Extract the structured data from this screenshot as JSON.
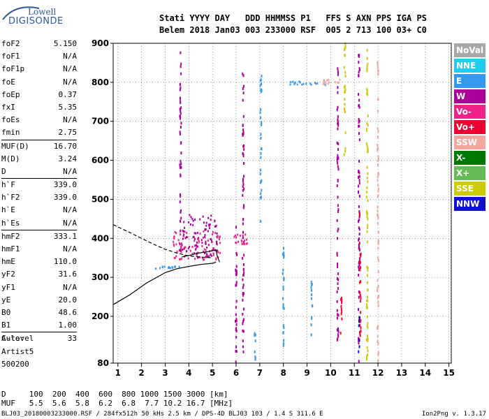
{
  "logo": {
    "line1": "Lowell",
    "line2": "DIGISONDE"
  },
  "header": {
    "line1": "Stati YYYY DAY   DDD HHMMSS P1   FFS S AXN PPS IGA PS",
    "line2": "Belem 2018 Jan03 003 233000 RSF  005 2 713 100 03+ C0"
  },
  "params": [
    {
      "k": "foF2",
      "v": "5.150"
    },
    {
      "k": "foF1",
      "v": "N/A"
    },
    {
      "k": "foF1p",
      "v": "N/A"
    },
    {
      "k": "foE",
      "v": "N/A"
    },
    {
      "k": "foEp",
      "v": "0.37"
    },
    {
      "k": "fxI",
      "v": "5.35"
    },
    {
      "k": "foEs",
      "v": "N/A"
    },
    {
      "k": "fmin",
      "v": "2.75"
    },
    {
      "k": "MUF(D)",
      "v": "16.70"
    },
    {
      "k": "M(D)",
      "v": "3.24"
    },
    {
      "k": "D",
      "v": "N/A"
    },
    {
      "k": "h`F",
      "v": "339.0"
    },
    {
      "k": "h`F2",
      "v": "339.0"
    },
    {
      "k": "h`E",
      "v": "N/A"
    },
    {
      "k": "h`Es",
      "v": "N/A"
    },
    {
      "k": "hmF2",
      "v": "333.1"
    },
    {
      "k": "hmF1",
      "v": "N/A"
    },
    {
      "k": "hmE",
      "v": "110.0"
    },
    {
      "k": "yF2",
      "v": "31.6"
    },
    {
      "k": "yF1",
      "v": "N/A"
    },
    {
      "k": "yE",
      "v": "20.0"
    },
    {
      "k": "B0",
      "v": "48.6"
    },
    {
      "k": "B1",
      "v": "1.00"
    },
    {
      "k": "C-level",
      "v": "33"
    }
  ],
  "auto": {
    "line1": "Auto:",
    "line2": "Artist5",
    "line3": "500200"
  },
  "legend": [
    {
      "label": "NoVal",
      "color": "#a8a8a8"
    },
    {
      "label": "NNE",
      "color": "#22ccee"
    },
    {
      "label": "E",
      "color": "#3399ee"
    },
    {
      "label": "W",
      "color": "#aa0099"
    },
    {
      "label": "Vo-",
      "color": "#ee2288"
    },
    {
      "label": "Vo+",
      "color": "#ee0033"
    },
    {
      "label": "SSW",
      "color": "#f2a6a0"
    },
    {
      "label": "X-",
      "color": "#007700"
    },
    {
      "label": "X+",
      "color": "#66bb55"
    },
    {
      "label": "SSE",
      "color": "#cccc00"
    },
    {
      "label": "NNW",
      "color": "#1111cc"
    }
  ],
  "muf_table": {
    "line1": "D     100  200  400  600  800 1000 1500 3000 [km]",
    "line2": "MUF   5.5  5.6  5.8  6.2  6.8  7.7 10.2 16.7 [MHz]"
  },
  "footer": {
    "left": "BLJ03_20180003233000.RSF / 284fx512h 50 kHs 2.5 km / DPS-4D BLJ03 103 / 1.4 S 311.6 E",
    "right": "Ion2Png v. 1.3.17"
  },
  "chart_data": {
    "type": "scatter",
    "title": "",
    "xlabel": "",
    "ylabel": "",
    "xlim": [
      0.8,
      15.1
    ],
    "ylim": [
      80,
      900
    ],
    "x_ticks": [
      1,
      2,
      3,
      4,
      5,
      6,
      7,
      8,
      9,
      10,
      11,
      12,
      13,
      14,
      15
    ],
    "y_ticks": [
      80,
      200,
      300,
      400,
      500,
      600,
      700,
      800,
      900
    ],
    "grid": true,
    "grid_style": "dotted",
    "traces": [
      {
        "color": "#000000",
        "style": "solid",
        "x": [
          0.8,
          1.5,
          2.2,
          3.0,
          3.5,
          4.0,
          4.5,
          5.0,
          5.15
        ],
        "y": [
          230,
          255,
          285,
          312,
          322,
          328,
          333,
          336,
          339
        ]
      },
      {
        "color": "#000000",
        "style": "dashed",
        "x": [
          0.8,
          1.5,
          2.0,
          2.5,
          3.0,
          3.5,
          4.0,
          4.5,
          5.0
        ],
        "y": [
          435,
          415,
          400,
          385,
          372,
          362,
          355,
          352,
          350
        ]
      },
      {
        "color": "#000000",
        "style": "solid",
        "x": [
          3.7,
          4.0,
          4.4,
          4.8,
          5.15,
          5.2,
          5.3
        ],
        "y": [
          352,
          356,
          362,
          366,
          370,
          355,
          339
        ]
      }
    ],
    "echo_tracks": [
      {
        "name": "W",
        "color": "#aa0099",
        "x": 3.65,
        "y0": 360,
        "y1": 890
      },
      {
        "name": "W",
        "color": "#aa0099",
        "x": 6.0,
        "y0": 80,
        "y1": 430
      },
      {
        "name": "W",
        "color": "#aa0099",
        "x": 6.3,
        "y0": 90,
        "y1": 840
      },
      {
        "name": "W",
        "color": "#aa0099",
        "x": 10.3,
        "y0": 130,
        "y1": 840
      },
      {
        "name": "W",
        "color": "#aa0099",
        "x": 11.2,
        "y0": 80,
        "y1": 900
      },
      {
        "name": "E",
        "color": "#3399ee",
        "x": 6.8,
        "y0": 80,
        "y1": 170
      },
      {
        "name": "E",
        "color": "#3399ee",
        "x": 7.05,
        "y0": 440,
        "y1": 820
      },
      {
        "name": "E",
        "color": "#3399ee",
        "x": 8.0,
        "y0": 100,
        "y1": 380
      },
      {
        "name": "E",
        "color": "#3399ee",
        "x": 9.2,
        "y0": 140,
        "y1": 300
      },
      {
        "name": "Vo+",
        "color": "#ee0033",
        "x": 10.45,
        "y0": 130,
        "y1": 250
      },
      {
        "name": "Vo+",
        "color": "#ee0033",
        "x": 11.25,
        "y0": 150,
        "y1": 500
      },
      {
        "name": "SSE",
        "color": "#cccc00",
        "x": 11.55,
        "y0": 80,
        "y1": 900
      },
      {
        "name": "SSE",
        "color": "#cccc00",
        "x": 10.6,
        "y0": 610,
        "y1": 900
      },
      {
        "name": "SSW",
        "color": "#f2a6a0",
        "x": 12.0,
        "y0": 80,
        "y1": 900
      },
      {
        "name": "NNW",
        "color": "#1111cc",
        "x": 11.2,
        "y0": 90,
        "y1": 200
      }
    ],
    "echo_clusters": [
      {
        "name": "Vo-",
        "color": "#ee2288",
        "xr": [
          3.3,
          5.4
        ],
        "yr": [
          345,
          420
        ]
      },
      {
        "name": "W",
        "color": "#aa0099",
        "xr": [
          3.6,
          5.2
        ],
        "yr": [
          350,
          460
        ]
      },
      {
        "name": "E",
        "color": "#3399ee",
        "xr": [
          2.6,
          3.6
        ],
        "yr": [
          322,
          328
        ]
      },
      {
        "name": "E",
        "color": "#3399ee",
        "xr": [
          8.0,
          9.8
        ],
        "yr": [
          793,
          803
        ]
      },
      {
        "name": "SSW",
        "color": "#f2a6a0",
        "xr": [
          9.6,
          10.4
        ],
        "yr": [
          795,
          808
        ]
      },
      {
        "name": "Vo-",
        "color": "#ee2288",
        "xr": [
          5.9,
          6.5
        ],
        "yr": [
          385,
          410
        ]
      }
    ]
  }
}
